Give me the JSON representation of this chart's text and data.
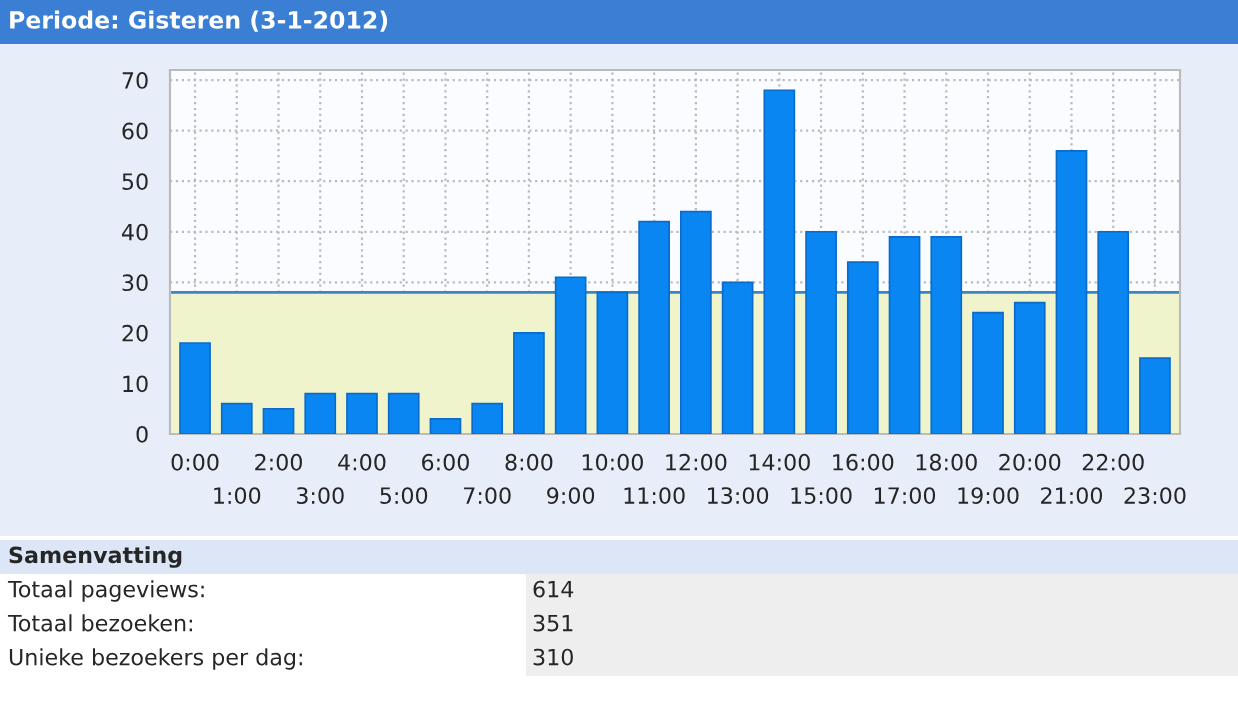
{
  "chart_data": {
    "type": "bar",
    "title": "Periode: Gisteren (3-1-2012)",
    "categories": [
      "0:00",
      "1:00",
      "2:00",
      "3:00",
      "4:00",
      "5:00",
      "6:00",
      "7:00",
      "8:00",
      "9:00",
      "10:00",
      "11:00",
      "12:00",
      "13:00",
      "14:00",
      "15:00",
      "16:00",
      "17:00",
      "18:00",
      "19:00",
      "20:00",
      "21:00",
      "22:00",
      "23:00"
    ],
    "values": [
      18,
      6,
      5,
      8,
      8,
      8,
      3,
      6,
      20,
      31,
      28,
      42,
      44,
      30,
      68,
      40,
      34,
      39,
      39,
      24,
      26,
      56,
      40,
      15
    ],
    "color": "#0a86f2",
    "ylim": [
      0,
      72
    ],
    "yticks": [
      0,
      10,
      20,
      30,
      40,
      50,
      60,
      70
    ],
    "grid": true,
    "bands": [
      {
        "axis": "y",
        "from": 0,
        "to": 28,
        "color": "#f0f4cc"
      }
    ],
    "ref_lines": [
      {
        "axis": "y",
        "value": 28,
        "color": "#3a86c0"
      }
    ],
    "annotations": [
      "Samenvatting",
      "Totaal pageviews:",
      "614",
      "Totaal bezoeken:",
      "351",
      "Unieke bezoekers per dag:",
      "310"
    ]
  }
}
